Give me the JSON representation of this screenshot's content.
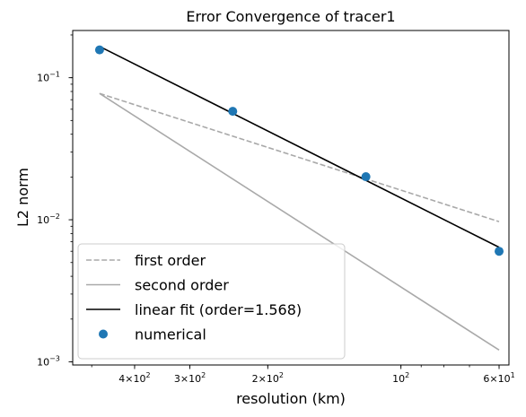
{
  "chart_data": {
    "type": "line",
    "title": "Error Convergence of tracer1",
    "xlabel": "resolution (km)",
    "ylabel": "L2 norm",
    "xscale": "log",
    "yscale": "log",
    "x_reversed": true,
    "xlim": [
      552,
      57
    ],
    "ylim": [
      0.00095,
      0.215
    ],
    "grid": false,
    "legend_position": "lower-left",
    "x_ticks": [
      {
        "value": 400,
        "base": "4",
        "mult": "×",
        "pow": "10",
        "exp": "2"
      },
      {
        "value": 300,
        "base": "3",
        "mult": "×",
        "pow": "10",
        "exp": "2"
      },
      {
        "value": 200,
        "base": "2",
        "mult": "×",
        "pow": "10",
        "exp": "2"
      },
      {
        "value": 100,
        "base": "",
        "mult": "",
        "pow": "10",
        "exp": "2"
      },
      {
        "value": 60,
        "base": "6",
        "mult": "×",
        "pow": "10",
        "exp": "1"
      }
    ],
    "y_ticks": [
      {
        "value": 0.1,
        "pow": "10",
        "exp": "−1"
      },
      {
        "value": 0.01,
        "pow": "10",
        "exp": "−2"
      },
      {
        "value": 0.001,
        "pow": "10",
        "exp": "−3"
      }
    ],
    "series": [
      {
        "name": "first order",
        "kind": "line",
        "style": "dashed",
        "color": "#a9a9a9",
        "x": [
          480,
          60
        ],
        "y": [
          0.0775,
          0.0097
        ]
      },
      {
        "name": "second order",
        "kind": "line",
        "style": "solid",
        "color": "#a9a9a9",
        "x": [
          480,
          60
        ],
        "y": [
          0.0775,
          0.00121
        ]
      },
      {
        "name": "linear fit (order=1.568)",
        "kind": "line",
        "style": "solid",
        "color": "#000000",
        "x": [
          480,
          60
        ],
        "y": [
          0.166,
          0.0064
        ]
      },
      {
        "name": "numerical",
        "kind": "scatter",
        "color": "#1f77b4",
        "x": [
          480,
          240,
          120,
          60
        ],
        "y": [
          0.157,
          0.058,
          0.0201,
          0.006
        ]
      }
    ]
  }
}
